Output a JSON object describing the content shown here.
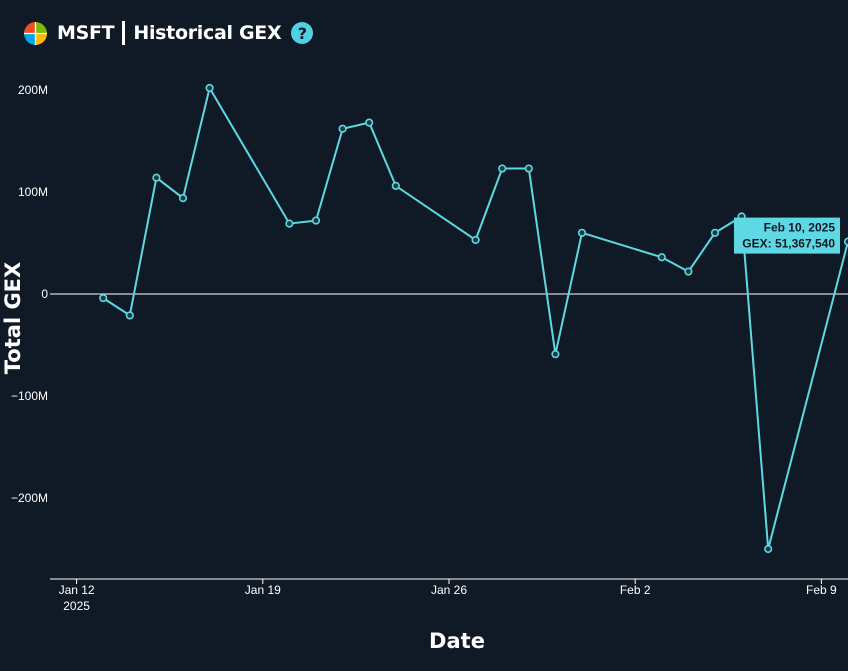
{
  "header": {
    "ticker": "MSFT",
    "title": "Historical GEX",
    "help_symbol": "?",
    "logo_colors": [
      "#f25022",
      "#7fba00",
      "#00a4ef",
      "#ffb900"
    ]
  },
  "colors": {
    "background": "#101a27",
    "line": "#5ed8e3",
    "zero_line": "#ffffff",
    "tooltip_bg": "#5ed8e3",
    "tooltip_text": "#101a27"
  },
  "chart_data": {
    "type": "line",
    "xlabel": "Date",
    "ylabel": "Total GEX",
    "x_ticks": [
      {
        "date": "2025-01-12",
        "label": "Jan 12",
        "sublabel": "2025"
      },
      {
        "date": "2025-01-19",
        "label": "Jan 19",
        "sublabel": ""
      },
      {
        "date": "2025-01-26",
        "label": "Jan 26",
        "sublabel": ""
      },
      {
        "date": "2025-02-02",
        "label": "Feb 2",
        "sublabel": ""
      },
      {
        "date": "2025-02-09",
        "label": "Feb 9",
        "sublabel": ""
      }
    ],
    "xlim": [
      "2025-01-11",
      "2025-02-10"
    ],
    "y_ticks": [
      {
        "value": 200000000,
        "label": "200M"
      },
      {
        "value": 100000000,
        "label": "100M"
      },
      {
        "value": 0,
        "label": "0"
      },
      {
        "value": -100000000,
        "label": "−100M"
      },
      {
        "value": -200000000,
        "label": "−200M"
      }
    ],
    "ylim": [
      -280000000,
      220000000
    ],
    "grid": false,
    "zero_line": true,
    "series": [
      {
        "points": [
          {
            "x": "2025-01-13",
            "y": -4000000
          },
          {
            "x": "2025-01-14",
            "y": -21000000
          },
          {
            "x": "2025-01-15",
            "y": 114000000
          },
          {
            "x": "2025-01-16",
            "y": 94000000
          },
          {
            "x": "2025-01-17",
            "y": 202000000
          },
          {
            "x": "2025-01-20",
            "y": 69000000
          },
          {
            "x": "2025-01-21",
            "y": 72000000
          },
          {
            "x": "2025-01-22",
            "y": 162000000
          },
          {
            "x": "2025-01-23",
            "y": 168000000
          },
          {
            "x": "2025-01-24",
            "y": 106000000
          },
          {
            "x": "2025-01-27",
            "y": 53000000
          },
          {
            "x": "2025-01-28",
            "y": 123000000
          },
          {
            "x": "2025-01-29",
            "y": 123000000
          },
          {
            "x": "2025-01-30",
            "y": -59000000
          },
          {
            "x": "2025-01-31",
            "y": 60000000
          },
          {
            "x": "2025-02-03",
            "y": 36000000
          },
          {
            "x": "2025-02-04",
            "y": 22000000
          },
          {
            "x": "2025-02-05",
            "y": 60000000
          },
          {
            "x": "2025-02-06",
            "y": 76000000
          },
          {
            "x": "2025-02-07",
            "y": -250000000
          },
          {
            "x": "2025-02-10",
            "y": 51367540
          }
        ]
      }
    ],
    "tooltip": {
      "x": "2025-02-10",
      "date_text": "Feb 10, 2025",
      "value_text": "GEX: 51,367,540"
    }
  }
}
